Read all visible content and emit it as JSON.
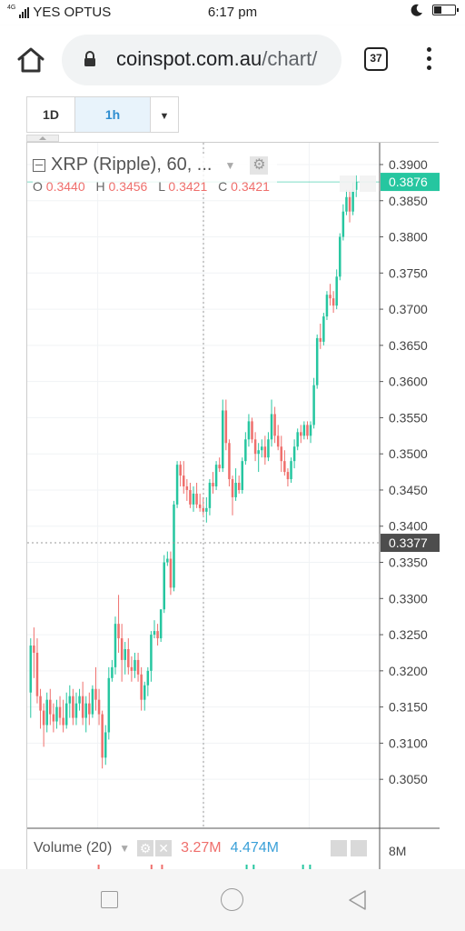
{
  "status_bar": {
    "network_type": "4G",
    "carrier": "YES OPTUS",
    "time": "6:17 pm",
    "battery_level": 0.4
  },
  "browser": {
    "url_domain": "coinspot.com.au",
    "url_path": "/chart/",
    "tab_count": "37",
    "icons": [
      "home-icon",
      "lock-icon",
      "tabs-icon",
      "overflow-menu-icon"
    ]
  },
  "toolbar": {
    "interval_1d": "1D",
    "interval_1h": "1h",
    "more_caret": "▼",
    "active_interval": "1h"
  },
  "legend": {
    "symbol_title": "XRP (Ripple), 60, ...",
    "open_label": "O",
    "open_value": "0.3440",
    "high_label": "H",
    "high_value": "0.3456",
    "low_label": "L",
    "low_value": "0.3421",
    "close_label": "C",
    "close_value": "0.3421"
  },
  "volume_legend": {
    "title": "Volume (20)",
    "value_1": "3.27M",
    "value_2": "4.474M",
    "axis_label": "8M"
  },
  "colors": {
    "up": "#26c6a0",
    "down": "#ef6f6c",
    "last_price_badge": "#26c6a0",
    "crosshair_badge": "#4d4d4d",
    "active_interval_text": "#2d8dd0"
  },
  "chart_data": {
    "type": "candlestick",
    "title": "XRP (Ripple), 60, ...",
    "interval": "60",
    "y_range": [
      0.301,
      0.3905
    ],
    "y_ticks": [
      "0.3900",
      "0.3850",
      "0.3800",
      "0.3750",
      "0.3700",
      "0.3650",
      "0.3600",
      "0.3550",
      "0.3500",
      "0.3450",
      "0.3400",
      "0.3350",
      "0.3300",
      "0.3250",
      "0.3200",
      "0.3150",
      "0.3100",
      "0.3050"
    ],
    "last_price_label": "0.3876",
    "last_price": 0.3876,
    "crosshair_price_label": "0.3377",
    "crosshair_price": 0.3377,
    "grid": true,
    "candles_ohlc": [
      [
        0.317,
        0.3245,
        0.3135,
        0.3235
      ],
      [
        0.3235,
        0.326,
        0.319,
        0.3225
      ],
      [
        0.3225,
        0.3245,
        0.3155,
        0.3165
      ],
      [
        0.3165,
        0.3175,
        0.312,
        0.3145
      ],
      [
        0.3145,
        0.3155,
        0.3095,
        0.3125
      ],
      [
        0.3125,
        0.317,
        0.3115,
        0.316
      ],
      [
        0.316,
        0.3175,
        0.3125,
        0.314
      ],
      [
        0.314,
        0.3155,
        0.3115,
        0.313
      ],
      [
        0.313,
        0.316,
        0.312,
        0.315
      ],
      [
        0.315,
        0.3165,
        0.3125,
        0.3135
      ],
      [
        0.3135,
        0.316,
        0.3115,
        0.3125
      ],
      [
        0.3125,
        0.317,
        0.312,
        0.3155
      ],
      [
        0.3155,
        0.318,
        0.3135,
        0.3165
      ],
      [
        0.3165,
        0.3175,
        0.3125,
        0.3135
      ],
      [
        0.3135,
        0.317,
        0.3125,
        0.3155
      ],
      [
        0.3155,
        0.3175,
        0.3145,
        0.3165
      ],
      [
        0.3165,
        0.3185,
        0.3125,
        0.3135
      ],
      [
        0.3135,
        0.3165,
        0.3115,
        0.3155
      ],
      [
        0.3155,
        0.317,
        0.3125,
        0.314
      ],
      [
        0.314,
        0.318,
        0.3135,
        0.3175
      ],
      [
        0.3175,
        0.3205,
        0.3145,
        0.316
      ],
      [
        0.316,
        0.3175,
        0.3125,
        0.314
      ],
      [
        0.314,
        0.3145,
        0.3065,
        0.308
      ],
      [
        0.308,
        0.3125,
        0.307,
        0.3115
      ],
      [
        0.3115,
        0.3205,
        0.3105,
        0.319
      ],
      [
        0.319,
        0.3215,
        0.3185,
        0.3205
      ],
      [
        0.3205,
        0.3275,
        0.3195,
        0.3265
      ],
      [
        0.3265,
        0.3305,
        0.3225,
        0.3245
      ],
      [
        0.3245,
        0.3265,
        0.3185,
        0.3215
      ],
      [
        0.3215,
        0.324,
        0.3195,
        0.323
      ],
      [
        0.323,
        0.3245,
        0.3195,
        0.3205
      ],
      [
        0.3205,
        0.322,
        0.3185,
        0.32
      ],
      [
        0.32,
        0.3225,
        0.319,
        0.3215
      ],
      [
        0.3215,
        0.3225,
        0.3185,
        0.3195
      ],
      [
        0.3195,
        0.3205,
        0.3145,
        0.316
      ],
      [
        0.316,
        0.3185,
        0.3145,
        0.318
      ],
      [
        0.318,
        0.3205,
        0.3165,
        0.32
      ],
      [
        0.32,
        0.3255,
        0.3185,
        0.325
      ],
      [
        0.325,
        0.327,
        0.3245,
        0.3255
      ],
      [
        0.3255,
        0.3265,
        0.3235,
        0.3245
      ],
      [
        0.3245,
        0.3285,
        0.324,
        0.3285
      ],
      [
        0.3285,
        0.336,
        0.328,
        0.335
      ],
      [
        0.335,
        0.3365,
        0.3345,
        0.3355
      ],
      [
        0.3355,
        0.3365,
        0.3305,
        0.3315
      ],
      [
        0.3315,
        0.3435,
        0.331,
        0.343
      ],
      [
        0.343,
        0.349,
        0.3425,
        0.3485
      ],
      [
        0.3485,
        0.349,
        0.3455,
        0.347
      ],
      [
        0.347,
        0.349,
        0.3445,
        0.3455
      ],
      [
        0.3455,
        0.3465,
        0.3435,
        0.345
      ],
      [
        0.345,
        0.346,
        0.3425,
        0.343
      ],
      [
        0.343,
        0.3455,
        0.342,
        0.3445
      ],
      [
        0.3445,
        0.346,
        0.3425,
        0.343
      ],
      [
        0.343,
        0.3445,
        0.342,
        0.3425
      ],
      [
        0.3425,
        0.344,
        0.3415,
        0.342
      ],
      [
        0.342,
        0.344,
        0.3405,
        0.3425
      ],
      [
        0.3425,
        0.3465,
        0.3415,
        0.346
      ],
      [
        0.346,
        0.3475,
        0.3445,
        0.3455
      ],
      [
        0.3455,
        0.349,
        0.345,
        0.3485
      ],
      [
        0.3485,
        0.3495,
        0.3475,
        0.348
      ],
      [
        0.348,
        0.3575,
        0.3475,
        0.356
      ],
      [
        0.356,
        0.3575,
        0.3505,
        0.3515
      ],
      [
        0.3515,
        0.352,
        0.3455,
        0.3465
      ],
      [
        0.3465,
        0.347,
        0.3415,
        0.344
      ],
      [
        0.344,
        0.348,
        0.3435,
        0.346
      ],
      [
        0.346,
        0.347,
        0.3445,
        0.345
      ],
      [
        0.345,
        0.3495,
        0.3445,
        0.349
      ],
      [
        0.349,
        0.353,
        0.3485,
        0.352
      ],
      [
        0.352,
        0.3555,
        0.351,
        0.3545
      ],
      [
        0.3545,
        0.355,
        0.3515,
        0.352
      ],
      [
        0.352,
        0.353,
        0.349,
        0.35
      ],
      [
        0.35,
        0.3515,
        0.3475,
        0.3505
      ],
      [
        0.3505,
        0.352,
        0.3495,
        0.351
      ],
      [
        0.351,
        0.3525,
        0.3485,
        0.3495
      ],
      [
        0.3495,
        0.353,
        0.349,
        0.352
      ],
      [
        0.352,
        0.3575,
        0.351,
        0.3555
      ],
      [
        0.3555,
        0.3565,
        0.3515,
        0.3525
      ],
      [
        0.3525,
        0.354,
        0.3505,
        0.351
      ],
      [
        0.351,
        0.3525,
        0.3475,
        0.349
      ],
      [
        0.349,
        0.3505,
        0.347,
        0.3475
      ],
      [
        0.3475,
        0.348,
        0.3455,
        0.3465
      ],
      [
        0.3465,
        0.3495,
        0.346,
        0.349
      ],
      [
        0.349,
        0.352,
        0.348,
        0.351
      ],
      [
        0.351,
        0.3535,
        0.3505,
        0.353
      ],
      [
        0.353,
        0.354,
        0.3515,
        0.3525
      ],
      [
        0.3525,
        0.3545,
        0.352,
        0.354
      ],
      [
        0.354,
        0.3545,
        0.352,
        0.3525
      ],
      [
        0.3525,
        0.3545,
        0.3515,
        0.354
      ],
      [
        0.354,
        0.3605,
        0.3535,
        0.3595
      ],
      [
        0.3595,
        0.3665,
        0.359,
        0.366
      ],
      [
        0.366,
        0.368,
        0.3645,
        0.3655
      ],
      [
        0.3655,
        0.3695,
        0.365,
        0.369
      ],
      [
        0.369,
        0.3725,
        0.3685,
        0.372
      ],
      [
        0.372,
        0.3735,
        0.3705,
        0.3715
      ],
      [
        0.3715,
        0.3725,
        0.3695,
        0.3705
      ],
      [
        0.3705,
        0.3755,
        0.37,
        0.3745
      ],
      [
        0.3745,
        0.3805,
        0.374,
        0.38
      ],
      [
        0.38,
        0.3845,
        0.3795,
        0.3835
      ],
      [
        0.3835,
        0.3865,
        0.383,
        0.3855
      ],
      [
        0.3855,
        0.3865,
        0.382,
        0.3835
      ],
      [
        0.3835,
        0.3875,
        0.383,
        0.3865
      ],
      [
        0.3865,
        0.3885,
        0.3855,
        0.3876
      ]
    ]
  }
}
